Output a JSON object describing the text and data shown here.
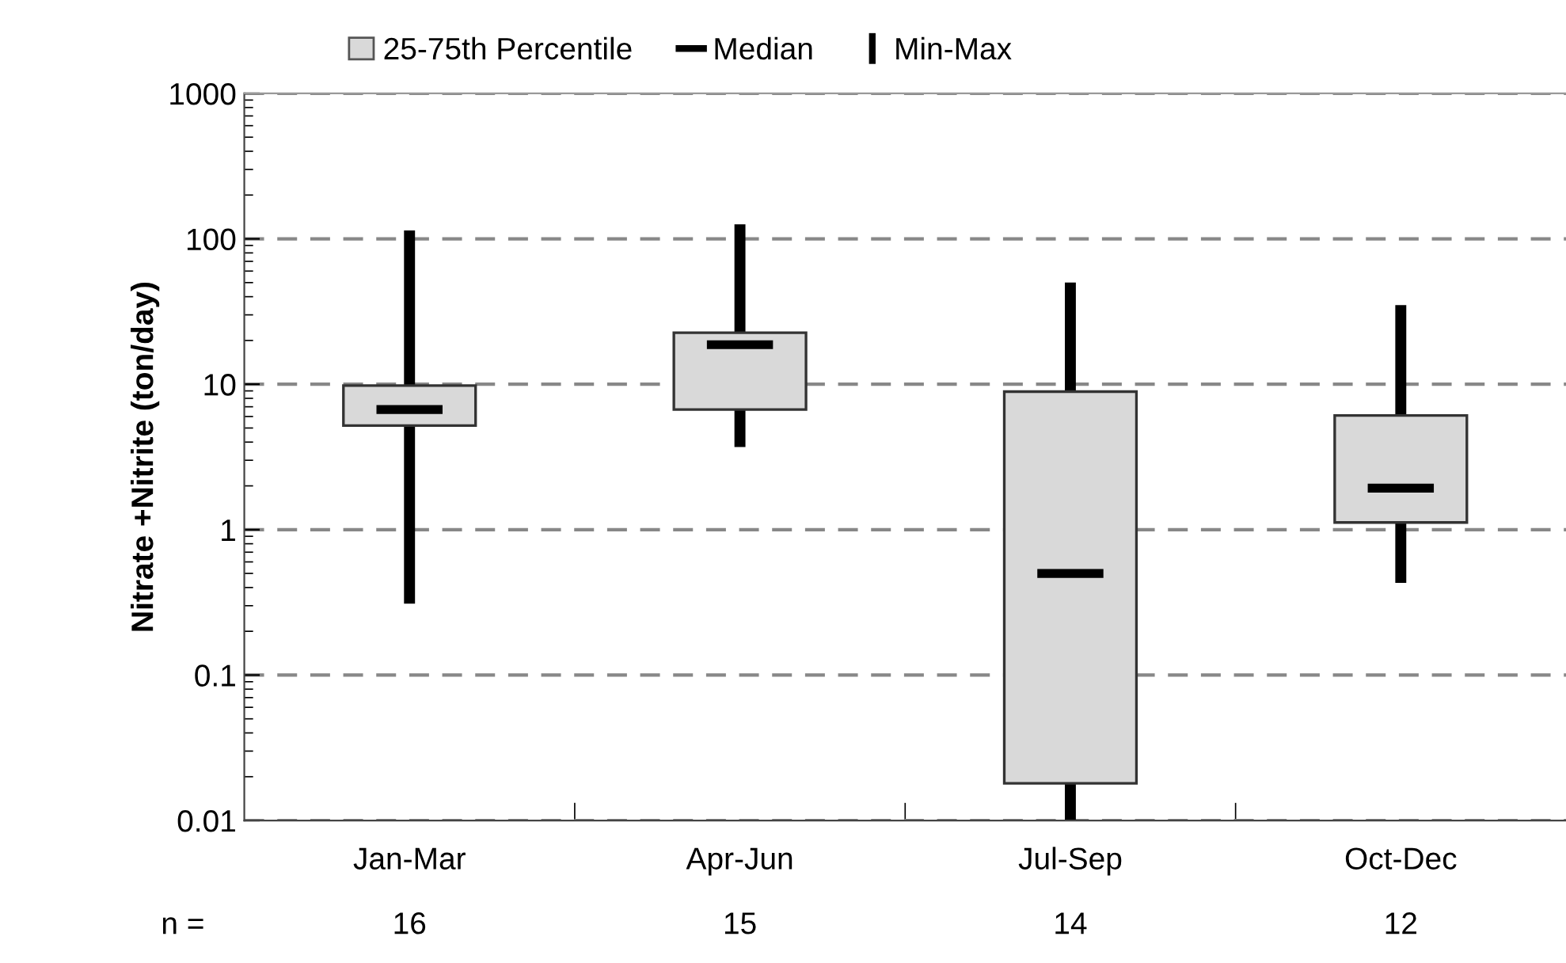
{
  "chart_data": {
    "type": "box",
    "ylabel": "Nitrate +Nitrite (ton/day)",
    "categories": [
      "Jan-Mar",
      "Apr-Jun",
      "Jul-Sep",
      "Oct-Dec"
    ],
    "series": [
      {
        "name": "25-75th Percentile",
        "color": "#d9d9d9",
        "boxes": [
          {
            "low": 0.31,
            "q1": 5.2,
            "median": 6.7,
            "q3": 9.8,
            "high": 114
          },
          {
            "low": 3.7,
            "q1": 6.7,
            "median": 18.7,
            "q3": 22.6,
            "high": 126
          },
          {
            "low": 0.01,
            "q1": 0.018,
            "median": 0.5,
            "q3": 8.9,
            "high": 50
          },
          {
            "low": 0.43,
            "q1": 1.12,
            "median": 1.93,
            "q3": 6.1,
            "high": 35
          }
        ]
      }
    ],
    "annotations": [
      "Median",
      "Min-Max",
      "n =",
      "16",
      "15",
      "14",
      "12"
    ],
    "log": "y",
    "ylim": [
      0.01,
      1000
    ],
    "yticks": [
      0.01,
      0.1,
      1,
      10,
      100,
      1000
    ],
    "grid": "y",
    "legend": "top"
  }
}
